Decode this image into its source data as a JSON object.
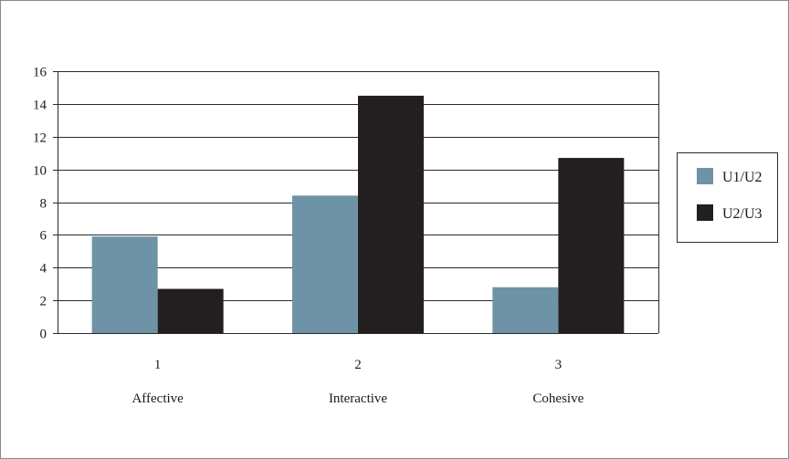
{
  "chart_data": {
    "type": "bar",
    "title": "",
    "xlabel": "",
    "ylabel": "",
    "categories": [
      "1",
      "2",
      "3"
    ],
    "category_names": [
      "Affective",
      "Interactive",
      "Cohesive"
    ],
    "series": [
      {
        "name": "U1/U2",
        "color": "#6f93a6",
        "values": [
          5.9,
          8.4,
          2.8
        ]
      },
      {
        "name": "U2/U3",
        "color": "#231f20",
        "values": [
          2.7,
          14.5,
          10.7
        ]
      }
    ],
    "ylim": [
      0,
      16
    ],
    "yticks": [
      "0",
      "2",
      "4",
      "6",
      "8",
      "10",
      "12",
      "14",
      "16"
    ],
    "grid": true,
    "legend_position": "right"
  }
}
